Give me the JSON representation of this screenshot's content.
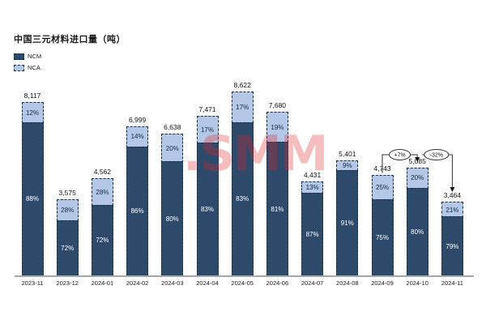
{
  "title": "中国三元材料进口量（吨）",
  "legend": {
    "items": [
      {
        "label": "NCM",
        "color": "#2e4a6b"
      },
      {
        "label": "NCA",
        "color": "#b4c7e7"
      }
    ]
  },
  "watermark": ".SMM",
  "colors": {
    "ncm": "#2e4a6b",
    "nca": "#b4c7e7",
    "segment_border": "#17304f",
    "axis": "#a8a8a8",
    "watermark_red": "rgba(226,36,43,0.30)",
    "annotation_line": "#333333"
  },
  "chart_data": {
    "type": "bar",
    "stacked": true,
    "title": "中国三元材料进口量（吨）",
    "ylabel": "吨",
    "legend_position": "top-left",
    "grid": false,
    "categories": [
      "2023-11",
      "2023-12",
      "2024-01",
      "2024-02",
      "2024-03",
      "2024-04",
      "2024-05",
      "2024-06",
      "2024-07",
      "2024-08",
      "2024-09",
      "2024-10",
      "2024-11"
    ],
    "totals": [
      8117,
      3575,
      4562,
      6999,
      6638,
      7471,
      8622,
      7680,
      4431,
      5401,
      4743,
      5085,
      3464
    ],
    "total_labels": [
      "8,117",
      "3,575",
      "4,562",
      "6,999",
      "6,638",
      "7,471",
      "8,622",
      "7,680",
      "4,431",
      "5,401",
      "4,743",
      "5,085",
      "3,464"
    ],
    "series": [
      {
        "name": "NCM",
        "pct": [
          88,
          72,
          72,
          86,
          80,
          83,
          83,
          81,
          87,
          91,
          75,
          80,
          79
        ]
      },
      {
        "name": "NCA",
        "pct": [
          12,
          28,
          28,
          14,
          20,
          17,
          17,
          19,
          13,
          9,
          25,
          20,
          21
        ]
      }
    ],
    "annotations": [
      {
        "label": "+7%",
        "from": "2024-09",
        "to": "2024-10",
        "from_index": 10,
        "to_index": 11
      },
      {
        "label": "-32%",
        "from": "2024-10",
        "to": "2024-11",
        "from_index": 11,
        "to_index": 12
      }
    ]
  }
}
